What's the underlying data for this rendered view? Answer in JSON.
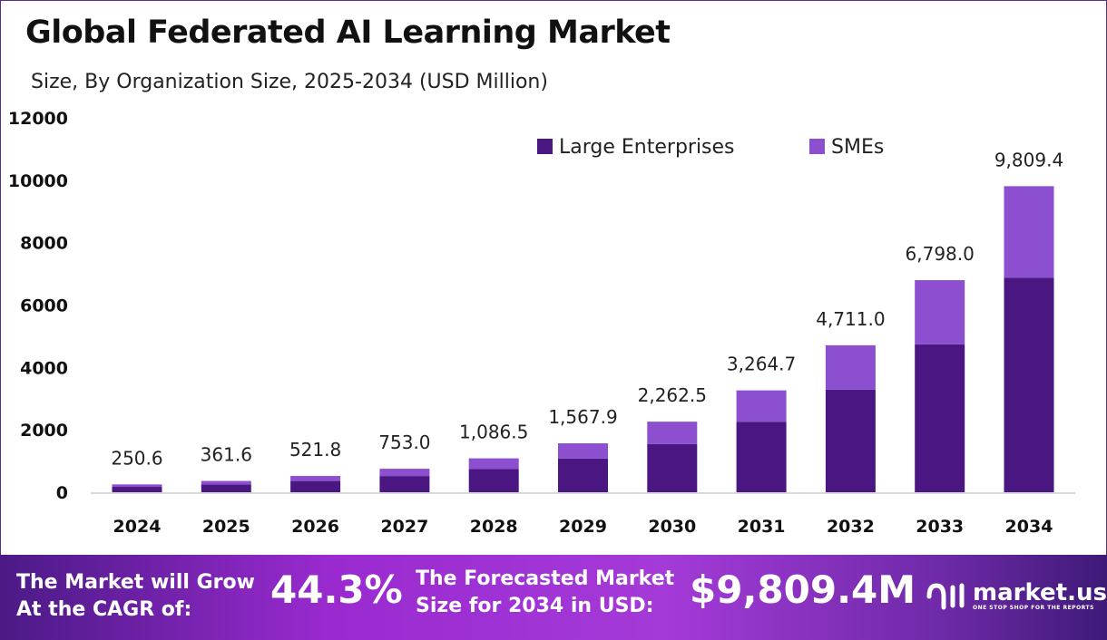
{
  "title": "Global Federated AI Learning Market",
  "subtitle": "Size, By Organization Size, 2025-2034 (USD Million)",
  "chart_data": {
    "type": "bar",
    "stacked": true,
    "categories": [
      "2024",
      "2025",
      "2026",
      "2027",
      "2028",
      "2029",
      "2030",
      "2031",
      "2032",
      "2033",
      "2034"
    ],
    "series": [
      {
        "name": "Large Enterprises",
        "color": "#4a1782",
        "values": [
          173,
          250,
          360,
          520,
          750,
          1080,
          1545,
          2260,
          3290,
          4740,
          6880
        ]
      },
      {
        "name": "SMEs",
        "color": "#8b4fd0",
        "values": [
          77.6,
          111.6,
          161.8,
          233,
          336.5,
          487.9,
          717.5,
          1004.7,
          1421,
          2058,
          2929.4
        ]
      }
    ],
    "totals_labels": [
      "250.6",
      "361.6",
      "521.8",
      "753.0",
      "1,086.5",
      "1,567.9",
      "2,262.5",
      "3,264.7",
      "4,711.0",
      "6,798.0",
      "9,809.4"
    ],
    "totals": [
      250.6,
      361.6,
      521.8,
      753.0,
      1086.5,
      1567.9,
      2262.5,
      3264.7,
      4711.0,
      6798.0,
      9809.4
    ],
    "ylim": [
      0,
      12000
    ],
    "yticks": [
      "0",
      "2000",
      "4000",
      "6000",
      "8000",
      "10000",
      "12000"
    ],
    "grid": false,
    "legend": "top-right"
  },
  "footer": {
    "cagr_text1": "The Market will Grow",
    "cagr_text2": "At the CAGR of:",
    "cagr_value": "44.3%",
    "forecast_text1": "The Forecasted Market",
    "forecast_text2": "Size for 2034 in USD:",
    "forecast_value": "$9,809.4M",
    "logo_name": "market.us",
    "logo_tagline": "ONE STOP SHOP FOR THE REPORTS"
  }
}
